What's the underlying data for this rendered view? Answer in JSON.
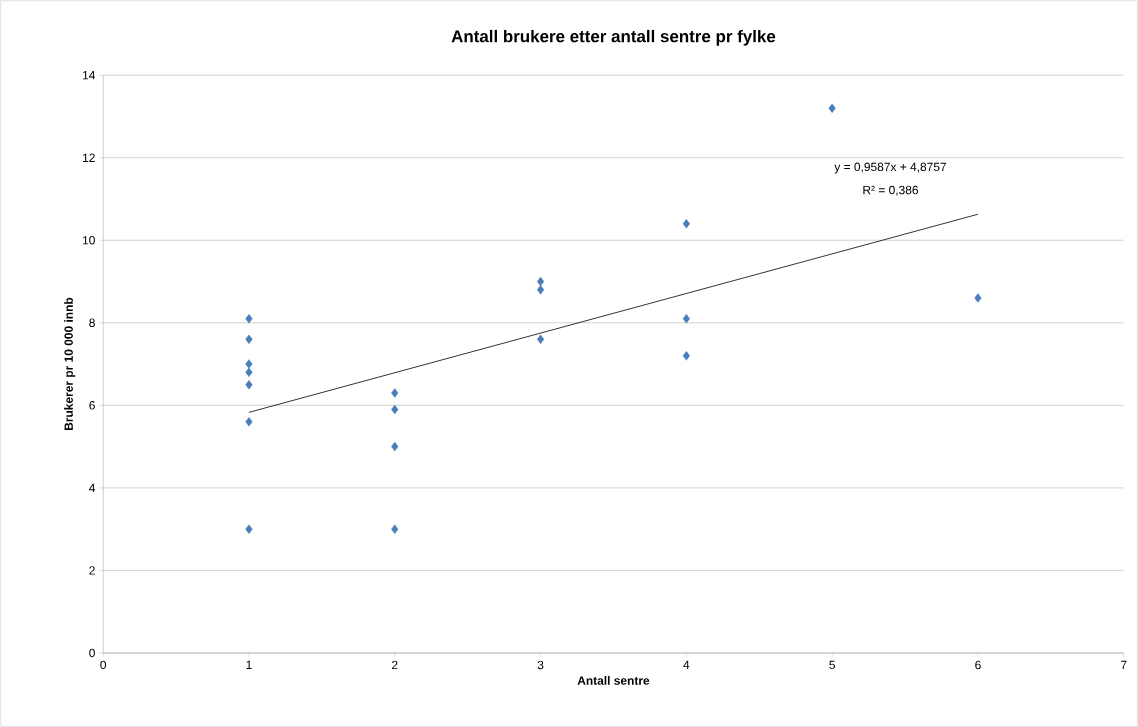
{
  "chart_data": {
    "type": "scatter",
    "title": "Antall brukere etter antall sentre pr fylke",
    "xlabel": "Antall sentre",
    "ylabel": "Brukerer pr 10 000 innb",
    "xlim": [
      0,
      7
    ],
    "xticks": [
      0,
      1,
      2,
      3,
      4,
      5,
      6,
      7
    ],
    "ylim": [
      0,
      14
    ],
    "yticks": [
      0,
      2,
      4,
      6,
      8,
      10,
      12,
      14
    ],
    "grid": "y",
    "marker": "diamond",
    "series": [
      {
        "color": "#4a7ebb",
        "x": [
          1,
          1,
          1,
          1,
          1,
          1,
          1,
          2,
          2,
          2,
          2,
          3,
          3,
          3,
          4,
          4,
          4,
          5,
          6
        ],
        "values": [
          8.1,
          7.6,
          7.0,
          6.8,
          6.5,
          5.6,
          3.0,
          6.3,
          5.9,
          5.0,
          3.0,
          9.0,
          8.8,
          7.6,
          10.4,
          8.1,
          7.2,
          13.2,
          8.6
        ]
      },
      {
        "type": "line",
        "color": "#000000",
        "marker": "none",
        "x": [
          1,
          6
        ],
        "values": [
          5.83,
          10.63
        ]
      }
    ],
    "annotations": [
      "y = 0,9587x + 4,8757",
      "R² = 0,386"
    ]
  }
}
